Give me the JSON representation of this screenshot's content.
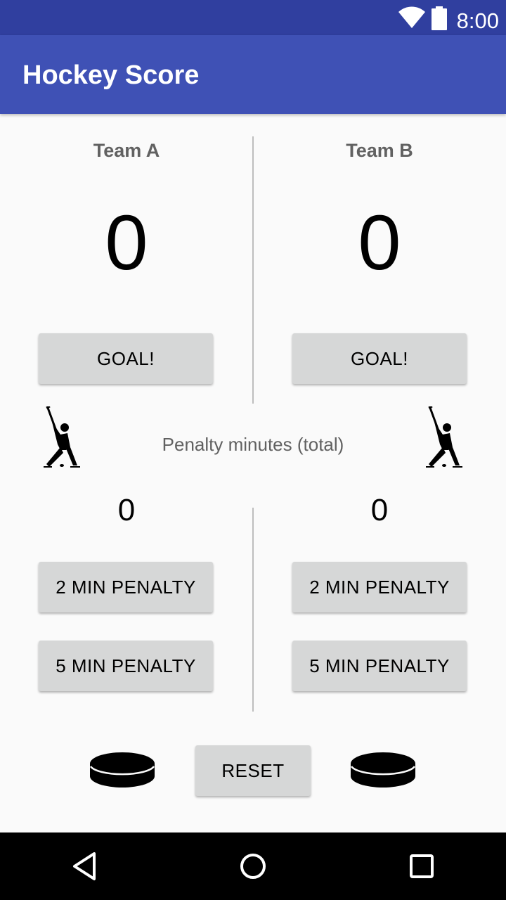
{
  "status_bar": {
    "time": "8:00",
    "icons": [
      "wifi-icon",
      "battery-icon"
    ]
  },
  "app_bar": {
    "title": "Hockey Score"
  },
  "team_a": {
    "name": "Team A",
    "score": "0",
    "goal_label": "GOAL!",
    "penalty_minutes": "0",
    "penalty2_label": "2 MIN PENALTY",
    "penalty5_label": "5 MIN PENALTY"
  },
  "team_b": {
    "name": "Team B",
    "score": "0",
    "goal_label": "GOAL!",
    "penalty_minutes": "0",
    "penalty2_label": "2 MIN PENALTY",
    "penalty5_label": "5 MIN PENALTY"
  },
  "penalty_section": {
    "title": "Penalty minutes (total)"
  },
  "reset_label": "RESET",
  "nav_bar": {
    "icons": [
      "back-icon",
      "home-icon",
      "recents-icon"
    ]
  },
  "colors": {
    "primary": "#3f51b5",
    "primary_dark": "#303f9f",
    "button": "#d6d7d7",
    "background": "#fafafa"
  }
}
